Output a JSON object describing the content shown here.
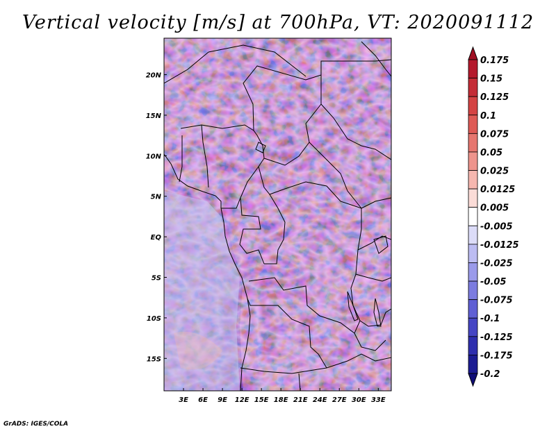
{
  "title": "Vertical velocity [m/s] at 700hPa, VT: 2020091112",
  "credit": "GrADS: IGES/COLA",
  "map": {
    "x_ticks": [
      "3E",
      "6E",
      "9E",
      "12E",
      "15E",
      "18E",
      "21E",
      "24E",
      "27E",
      "30E",
      "33E"
    ],
    "y_ticks": [
      "20N",
      "15N",
      "10N",
      "5N",
      "EQ",
      "5S",
      "10S",
      "15S"
    ],
    "lon_range": [
      0,
      35
    ],
    "lat_range": [
      -19,
      24.5
    ]
  },
  "colorbar": {
    "labels": [
      "0.175",
      "0.15",
      "0.125",
      "0.1",
      "0.075",
      "0.05",
      "0.025",
      "0.0125",
      "0.005",
      "-0.005",
      "-0.0125",
      "-0.025",
      "-0.05",
      "-0.075",
      "-0.1",
      "-0.125",
      "-0.175",
      "-0.2"
    ],
    "colors": [
      "#a00f23",
      "#b4192c",
      "#c42c36",
      "#d44343",
      "#de5a55",
      "#e6766f",
      "#ee948c",
      "#f6b7af",
      "#fbdcd7",
      "#ffffff",
      "#dcdcf8",
      "#bcbcf2",
      "#9a9aea",
      "#7c7ce0",
      "#5f5fd4",
      "#4545c4",
      "#2e2eae",
      "#1c1c92",
      "#100e78"
    ]
  },
  "colors": {
    "frame": "#000000",
    "background": "#ffffff"
  }
}
